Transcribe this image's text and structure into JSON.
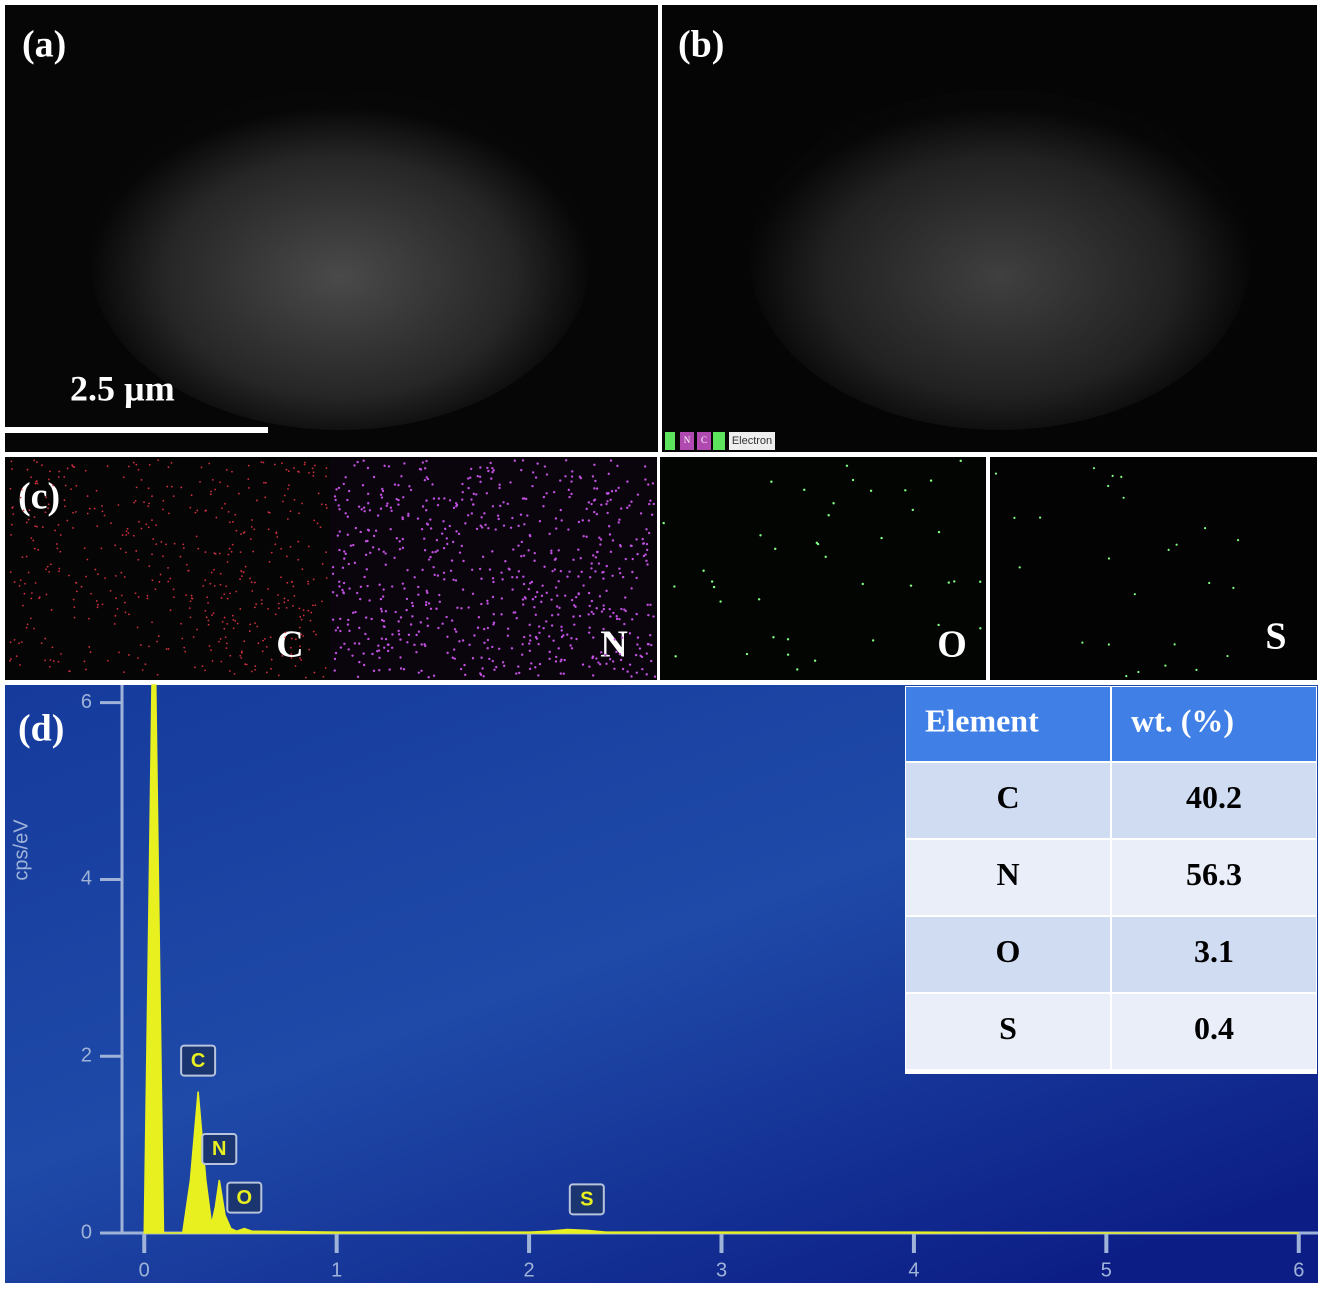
{
  "panels": {
    "a": {
      "label": "(a)",
      "scale_bar": "2.5 µm"
    },
    "b": {
      "label": "(b)",
      "legend": [
        "N",
        "C",
        "Electron"
      ]
    },
    "c": {
      "label": "(c)",
      "maps": [
        "C",
        "N",
        "O",
        "S"
      ]
    },
    "d": {
      "label": "(d)"
    }
  },
  "chart_data": {
    "type": "area",
    "y_label": "cps/eV",
    "color": "#e8f020",
    "xlim": [
      -0.1,
      6.1
    ],
    "ylim": [
      0,
      6.2
    ],
    "xticks": [
      0,
      1,
      2,
      3,
      4,
      5,
      6
    ],
    "yticks": [
      0,
      2,
      4,
      6
    ],
    "x": [
      0,
      0.02,
      0.04,
      0.06,
      0.08,
      0.1,
      0.2,
      0.24,
      0.28,
      0.32,
      0.35,
      0.37,
      0.39,
      0.42,
      0.45,
      0.48,
      0.52,
      0.56,
      0.6,
      1.0,
      2.0,
      2.1,
      2.2,
      2.3,
      2.4,
      3.0,
      4.0,
      5.0,
      6.0
    ],
    "values": [
      0,
      3,
      6.2,
      6.2,
      3,
      0,
      0,
      0.6,
      1.6,
      0.6,
      0.1,
      0.3,
      0.6,
      0.2,
      0.05,
      0.02,
      0.05,
      0.02,
      0.02,
      0.01,
      0.01,
      0.02,
      0.04,
      0.03,
      0.01,
      0.01,
      0.01,
      0,
      0
    ],
    "peak_labels": [
      {
        "label": "C",
        "x": 0.28,
        "y": 1.6
      },
      {
        "label": "N",
        "x": 0.39,
        "y": 0.6
      },
      {
        "label": "O",
        "x": 0.52,
        "y": 0.05
      },
      {
        "label": "S",
        "x": 2.3,
        "y": 0.03
      }
    ]
  },
  "table": {
    "header": [
      "Element",
      "wt. (%)"
    ],
    "rows": [
      [
        "C",
        "40.2"
      ],
      [
        "N",
        "56.3"
      ],
      [
        "O",
        "3.1"
      ],
      [
        "S",
        "0.4"
      ]
    ]
  }
}
